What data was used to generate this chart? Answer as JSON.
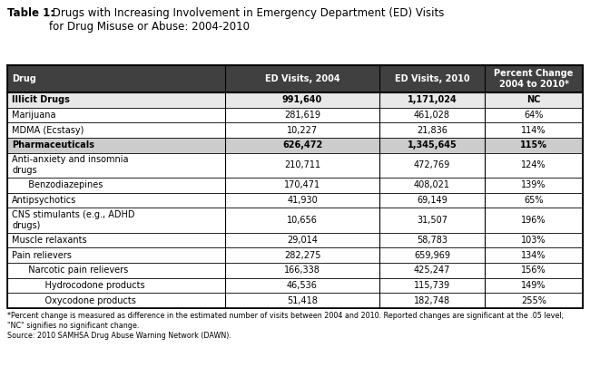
{
  "title_bold": "Table 1:",
  "title_normal": " Drugs with Increasing Involvement in Emergency Department (ED) Visits\nfor Drug Misuse or Abuse: 2004-2010",
  "col_headers": [
    "Drug",
    "ED Visits, 2004",
    "ED Visits, 2010",
    "Percent Change\n2004 to 2010*"
  ],
  "rows": [
    {
      "drug": "Illicit Drugs",
      "v2004": "991,640",
      "v2010": "1,171,024",
      "pct": "NC",
      "bold": true,
      "shaded": false,
      "indent": 0
    },
    {
      "drug": "Marijuana",
      "v2004": "281,619",
      "v2010": "461,028",
      "pct": "64%",
      "bold": false,
      "shaded": false,
      "indent": 0
    },
    {
      "drug": "MDMA (Ecstasy)",
      "v2004": "10,227",
      "v2010": "21,836",
      "pct": "114%",
      "bold": false,
      "shaded": false,
      "indent": 0
    },
    {
      "drug": "Pharmaceuticals",
      "v2004": "626,472",
      "v2010": "1,345,645",
      "pct": "115%",
      "bold": true,
      "shaded": true,
      "indent": 0
    },
    {
      "drug": "Anti-anxiety and insomnia\ndrugs",
      "v2004": "210,711",
      "v2010": "472,769",
      "pct": "124%",
      "bold": false,
      "shaded": false,
      "indent": 0
    },
    {
      "drug": "  Benzodiazepines",
      "v2004": "170,471",
      "v2010": "408,021",
      "pct": "139%",
      "bold": false,
      "shaded": false,
      "indent": 1
    },
    {
      "drug": "Antipsychotics",
      "v2004": "41,930",
      "v2010": "69,149",
      "pct": "65%",
      "bold": false,
      "shaded": false,
      "indent": 0
    },
    {
      "drug": "CNS stimulants (e.g., ADHD\ndrugs)",
      "v2004": "10,656",
      "v2010": "31,507",
      "pct": "196%",
      "bold": false,
      "shaded": false,
      "indent": 0
    },
    {
      "drug": "Muscle relaxants",
      "v2004": "29,014",
      "v2010": "58,783",
      "pct": "103%",
      "bold": false,
      "shaded": false,
      "indent": 0
    },
    {
      "drug": "Pain relievers",
      "v2004": "282,275",
      "v2010": "659,969",
      "pct": "134%",
      "bold": false,
      "shaded": false,
      "indent": 0
    },
    {
      "drug": "  Narcotic pain relievers",
      "v2004": "166,338",
      "v2010": "425,247",
      "pct": "156%",
      "bold": false,
      "shaded": false,
      "indent": 1
    },
    {
      "drug": "    Hydrocodone products",
      "v2004": "46,536",
      "v2010": "115,739",
      "pct": "149%",
      "bold": false,
      "shaded": false,
      "indent": 2
    },
    {
      "drug": "    Oxycodone products",
      "v2004": "51,418",
      "v2010": "182,748",
      "pct": "255%",
      "bold": false,
      "shaded": false,
      "indent": 2
    }
  ],
  "footnote_line1": "*Percent change is measured as difference in the estimated number of visits between 2004 and 2010. Reported changes are significant at the .05 level;",
  "footnote_line2": "\"NC\" signifies no significant change.",
  "footnote_line3": "Source: 2010 SAMHSA Drug Abuse Warning Network (DAWN).",
  "header_bg": "#404040",
  "header_fg": "#ffffff",
  "shaded_bg": "#cccccc",
  "normal_bg": "#ffffff",
  "row1_bg": "#e8e8e8",
  "border_color": "#000000",
  "fig_w": 6.5,
  "fig_h": 4.05,
  "dpi": 100
}
